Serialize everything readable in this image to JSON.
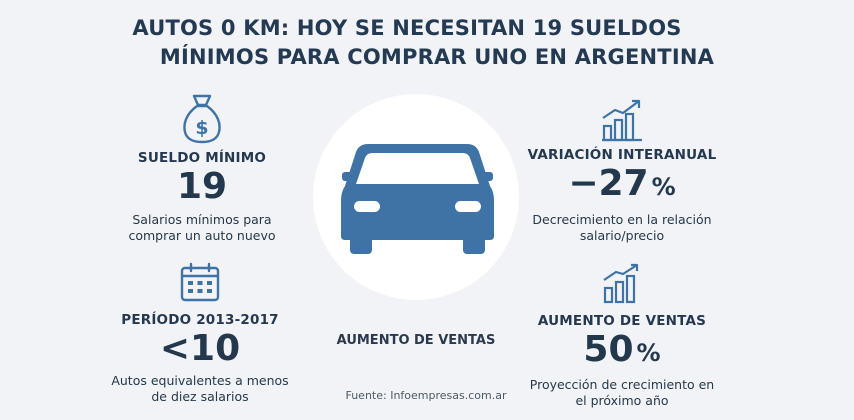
{
  "title": {
    "line1": "AUTOS 0 KM: HOY SE NECESITAN 19 SUELDOS",
    "line2": "MÍNIMOS PARA COMPRAR UNO EN ARGENTINA"
  },
  "colors": {
    "icon_blue": "#3f73a6",
    "text_dark": "#243a52",
    "background": "#f1f3f6"
  },
  "stats": {
    "sueldo": {
      "icon": "money-bag-icon",
      "label": "SUELDO MÍNIMO",
      "value": "19",
      "desc_line1": "Salarios mínimos para",
      "desc_line2": "comprar un auto nuevo"
    },
    "periodo": {
      "icon": "calendar-icon",
      "label": "PERÍODO 2013-2017",
      "value": "<10",
      "desc_line1": "Autos equivalentes a menos",
      "desc_line2": "de diez salarios"
    },
    "variacion": {
      "icon": "rising-chart-icon",
      "label": "VARIACIÓN INTERANUAL",
      "value": "−27",
      "unit": "%",
      "desc_line1": "Decrecimiento en la relación",
      "desc_line2": "salario/precio"
    },
    "ventas": {
      "icon": "bar-chart-icon",
      "label": "AUMENTO DE VENTAS",
      "value": "50",
      "unit": "%",
      "desc_line1": "Proyección de crecimiento en",
      "desc_line2": "el próximo año"
    }
  },
  "center": {
    "icon": "car-icon",
    "label": "AUMENTO DE VENTAS"
  },
  "source": "Fuente: Infoempresas.com.ar"
}
